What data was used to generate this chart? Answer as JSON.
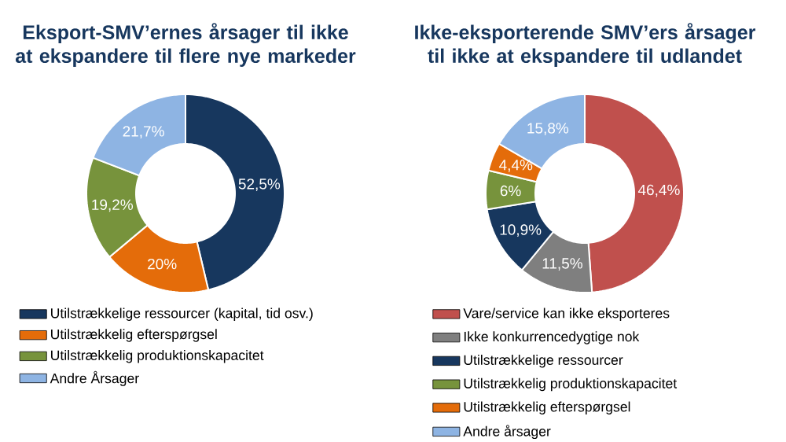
{
  "chart_data": [
    {
      "type": "donut",
      "title": "Eksport-SMV’ernes årsager til ikke at ekspandere til flere nye markeder",
      "categories": [
        "Utilstrækkelige ressourcer (kapital, tid osv.)",
        "Utilstrækkelig efterspørgsel",
        "Utilstrækkelig produktionskapacitet",
        "Andre Årsager"
      ],
      "values": [
        52.5,
        20,
        19.2,
        21.7
      ],
      "value_labels": [
        "52,5%",
        "20%",
        "19,2%",
        "21,7%"
      ],
      "colors": [
        "#17375e",
        "#e46c0a",
        "#77933c",
        "#8eb4e3"
      ],
      "legend": "bottom"
    },
    {
      "type": "donut",
      "title": "Ikke-eksporterende SMV’ers årsager til ikke at ekspandere til udlandet",
      "categories": [
        "Vare/service kan ikke eksporteres",
        "Ikke konkurrencedygtige nok",
        "Utilstrækkelige ressourcer",
        "Utilstrækkelig produktionskapacitet",
        "Utilstrækkelig efterspørgsel",
        "Andre årsager"
      ],
      "values": [
        46.4,
        11.5,
        10.9,
        6,
        4.4,
        15.8
      ],
      "value_labels": [
        "46,4%",
        "11,5%",
        "10,9%",
        "6%",
        "4,4%",
        "15,8%"
      ],
      "colors": [
        "#c0504d",
        "#7f7f7f",
        "#17375e",
        "#77933c",
        "#e46c0a",
        "#8eb4e3"
      ],
      "legend": "bottom"
    }
  ]
}
